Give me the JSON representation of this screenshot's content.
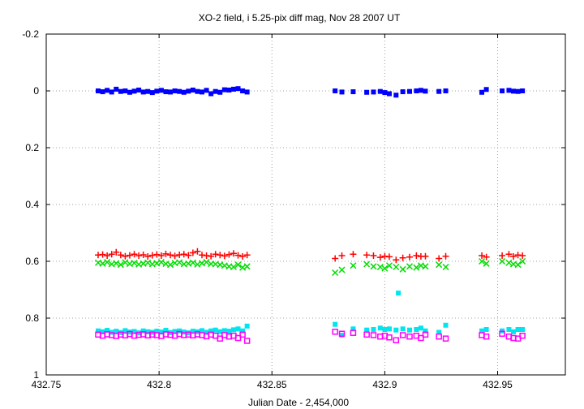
{
  "chart_data": {
    "type": "scatter",
    "title": "XO-2 field, i 5.25-pix diff mag, Nov 28 2007 UT",
    "xlabel": "Julian Date - 2,454,000",
    "ylabel": "",
    "xlim": [
      432.75,
      432.98
    ],
    "ylim": [
      -0.2,
      1.0
    ],
    "y_inverted": true,
    "grid": true,
    "legend": "none",
    "x_ticks": [
      432.75,
      432.8,
      432.85,
      432.9,
      432.95
    ],
    "x_tick_labels": [
      "432.75",
      "432.8",
      "432.85",
      "432.9",
      "432.95"
    ],
    "y_ticks": [
      -0.2,
      0,
      0.2,
      0.4,
      0.6,
      0.8,
      1.0
    ],
    "y_tick_labels": [
      "-0.2",
      "0",
      "0.2",
      "0.4",
      "0.6",
      "0.8",
      "1"
    ],
    "series": [
      {
        "marker": "filled-square",
        "color": "#0000ff",
        "x": [
          432.773,
          432.775,
          432.777,
          432.779,
          432.781,
          432.783,
          432.785,
          432.787,
          432.789,
          432.791,
          432.793,
          432.795,
          432.797,
          432.799,
          432.801,
          432.803,
          432.805,
          432.807,
          432.809,
          432.811,
          432.813,
          432.815,
          432.817,
          432.819,
          432.821,
          432.823,
          432.825,
          432.827,
          432.829,
          432.831,
          432.833,
          432.835,
          432.837,
          432.839,
          432.878,
          432.881,
          432.886,
          432.892,
          432.895,
          432.898,
          432.9,
          432.902,
          432.905,
          432.908,
          432.911,
          432.914,
          432.916,
          432.918,
          432.924,
          432.927,
          432.943,
          432.945,
          432.952,
          432.955,
          432.957,
          432.959,
          432.961
        ],
        "y": [
          0.0,
          0.003,
          -0.002,
          0.004,
          -0.006,
          0.002,
          0.0,
          0.005,
          0.001,
          -0.003,
          0.004,
          0.002,
          0.006,
          0.001,
          -0.002,
          0.003,
          0.004,
          0.0,
          0.002,
          0.005,
          0.001,
          -0.003,
          0.002,
          0.004,
          -0.002,
          0.01,
          0.002,
          0.005,
          -0.004,
          -0.003,
          -0.006,
          -0.008,
          0.0,
          0.004,
          0.0,
          0.004,
          0.003,
          0.005,
          0.004,
          0.002,
          0.006,
          0.01,
          0.015,
          0.003,
          0.002,
          0.0,
          -0.002,
          0.001,
          0.002,
          0.0,
          0.005,
          -0.005,
          0.0,
          -0.002,
          0.001,
          0.002,
          0.0
        ]
      },
      {
        "marker": "plus",
        "color": "#ff0000",
        "x": [
          432.773,
          432.775,
          432.777,
          432.779,
          432.781,
          432.783,
          432.785,
          432.787,
          432.789,
          432.791,
          432.793,
          432.795,
          432.797,
          432.799,
          432.801,
          432.803,
          432.805,
          432.807,
          432.809,
          432.811,
          432.813,
          432.815,
          432.817,
          432.819,
          432.821,
          432.823,
          432.825,
          432.827,
          432.829,
          432.831,
          432.833,
          432.835,
          432.837,
          432.839,
          432.878,
          432.881,
          432.886,
          432.892,
          432.895,
          432.898,
          432.9,
          432.902,
          432.905,
          432.908,
          432.911,
          432.914,
          432.916,
          432.918,
          432.924,
          432.927,
          432.943,
          432.945,
          432.952,
          432.955,
          432.957,
          432.959,
          432.961
        ],
        "y": [
          0.578,
          0.576,
          0.58,
          0.575,
          0.568,
          0.578,
          0.582,
          0.579,
          0.575,
          0.58,
          0.577,
          0.583,
          0.579,
          0.576,
          0.58,
          0.574,
          0.578,
          0.581,
          0.577,
          0.575,
          0.579,
          0.57,
          0.565,
          0.578,
          0.58,
          0.582,
          0.575,
          0.578,
          0.581,
          0.576,
          0.572,
          0.579,
          0.583,
          0.578,
          0.59,
          0.58,
          0.575,
          0.578,
          0.58,
          0.586,
          0.582,
          0.584,
          0.595,
          0.588,
          0.585,
          0.58,
          0.583,
          0.582,
          0.59,
          0.582,
          0.58,
          0.585,
          0.58,
          0.575,
          0.583,
          0.578,
          0.58
        ]
      },
      {
        "marker": "x",
        "color": "#00dd00",
        "x": [
          432.773,
          432.775,
          432.777,
          432.779,
          432.781,
          432.783,
          432.785,
          432.787,
          432.789,
          432.791,
          432.793,
          432.795,
          432.797,
          432.799,
          432.801,
          432.803,
          432.805,
          432.807,
          432.809,
          432.811,
          432.813,
          432.815,
          432.817,
          432.819,
          432.821,
          432.823,
          432.825,
          432.827,
          432.829,
          432.831,
          432.833,
          432.835,
          432.837,
          432.839,
          432.878,
          432.881,
          432.886,
          432.892,
          432.895,
          432.898,
          432.9,
          432.902,
          432.905,
          432.908,
          432.911,
          432.914,
          432.916,
          432.918,
          432.924,
          432.927,
          432.943,
          432.945,
          432.952,
          432.955,
          432.957,
          432.959,
          432.961
        ],
        "y": [
          0.605,
          0.608,
          0.603,
          0.61,
          0.607,
          0.612,
          0.604,
          0.609,
          0.606,
          0.611,
          0.608,
          0.605,
          0.61,
          0.607,
          0.603,
          0.609,
          0.612,
          0.606,
          0.604,
          0.61,
          0.608,
          0.605,
          0.611,
          0.607,
          0.603,
          0.609,
          0.61,
          0.612,
          0.615,
          0.618,
          0.62,
          0.612,
          0.622,
          0.618,
          0.64,
          0.63,
          0.615,
          0.61,
          0.618,
          0.62,
          0.625,
          0.615,
          0.62,
          0.628,
          0.618,
          0.622,
          0.615,
          0.618,
          0.612,
          0.62,
          0.6,
          0.608,
          0.6,
          0.605,
          0.61,
          0.612,
          0.6
        ]
      },
      {
        "marker": "filled-square",
        "color": "#00e5ee",
        "x": [
          432.773,
          432.775,
          432.777,
          432.779,
          432.781,
          432.783,
          432.785,
          432.787,
          432.789,
          432.791,
          432.793,
          432.795,
          432.797,
          432.799,
          432.801,
          432.803,
          432.805,
          432.807,
          432.809,
          432.811,
          432.813,
          432.815,
          432.817,
          432.819,
          432.821,
          432.823,
          432.825,
          432.827,
          432.829,
          432.831,
          432.833,
          432.835,
          432.837,
          432.839,
          432.878,
          432.881,
          432.886,
          432.892,
          432.895,
          432.898,
          432.9,
          432.902,
          432.905,
          432.906,
          432.908,
          432.911,
          432.914,
          432.916,
          432.918,
          432.924,
          432.927,
          432.943,
          432.945,
          432.952,
          432.955,
          432.957,
          432.959,
          432.961
        ],
        "y": [
          0.845,
          0.848,
          0.843,
          0.85,
          0.846,
          0.851,
          0.844,
          0.849,
          0.847,
          0.852,
          0.845,
          0.848,
          0.85,
          0.846,
          0.849,
          0.843,
          0.851,
          0.847,
          0.845,
          0.849,
          0.852,
          0.846,
          0.848,
          0.844,
          0.85,
          0.845,
          0.842,
          0.848,
          0.844,
          0.846,
          0.841,
          0.838,
          0.845,
          0.828,
          0.822,
          0.86,
          0.838,
          0.842,
          0.84,
          0.835,
          0.84,
          0.838,
          0.842,
          0.712,
          0.838,
          0.842,
          0.84,
          0.835,
          0.845,
          0.85,
          0.825,
          0.845,
          0.84,
          0.845,
          0.84,
          0.848,
          0.84,
          0.84
        ]
      },
      {
        "marker": "open-square",
        "color": "#ff00ff",
        "x": [
          432.773,
          432.775,
          432.777,
          432.779,
          432.781,
          432.783,
          432.785,
          432.787,
          432.789,
          432.791,
          432.793,
          432.795,
          432.797,
          432.799,
          432.801,
          432.803,
          432.805,
          432.807,
          432.809,
          432.811,
          432.813,
          432.815,
          432.817,
          432.819,
          432.821,
          432.823,
          432.825,
          432.827,
          432.829,
          432.831,
          432.833,
          432.835,
          432.837,
          432.839,
          432.878,
          432.881,
          432.886,
          432.892,
          432.895,
          432.898,
          432.9,
          432.902,
          432.905,
          432.908,
          432.911,
          432.914,
          432.916,
          432.918,
          432.924,
          432.927,
          432.943,
          432.945,
          432.952,
          432.955,
          432.957,
          432.959,
          432.961
        ],
        "y": [
          0.858,
          0.862,
          0.857,
          0.86,
          0.863,
          0.858,
          0.861,
          0.856,
          0.862,
          0.859,
          0.857,
          0.861,
          0.858,
          0.86,
          0.863,
          0.857,
          0.859,
          0.862,
          0.856,
          0.86,
          0.858,
          0.861,
          0.857,
          0.86,
          0.864,
          0.858,
          0.862,
          0.872,
          0.86,
          0.865,
          0.862,
          0.87,
          0.858,
          0.88,
          0.848,
          0.855,
          0.852,
          0.858,
          0.86,
          0.865,
          0.862,
          0.868,
          0.878,
          0.86,
          0.865,
          0.862,
          0.87,
          0.858,
          0.865,
          0.872,
          0.86,
          0.865,
          0.855,
          0.865,
          0.87,
          0.872,
          0.862
        ]
      }
    ]
  }
}
